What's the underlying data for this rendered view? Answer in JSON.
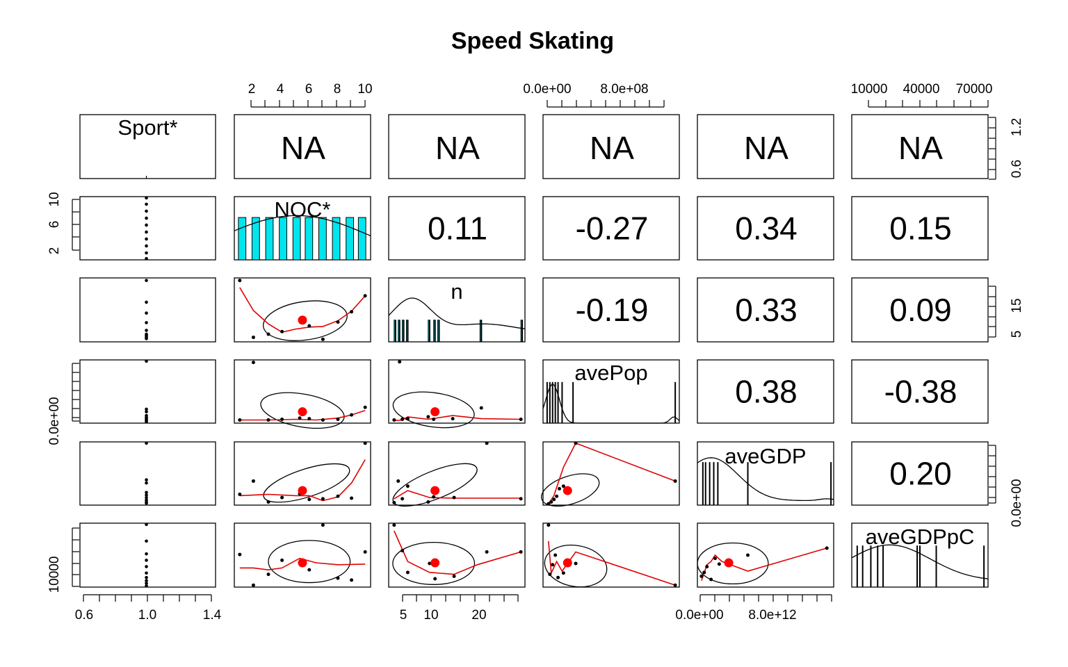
{
  "chart_data": {
    "type": "scatter",
    "title": "Speed Skating",
    "variables": [
      "Sport*",
      "NOC*",
      "n",
      "avePop",
      "aveGDP",
      "aveGDPpC"
    ],
    "diag_lower_ticks": {
      "Sport*": [
        "0.6",
        "1.0",
        "1.4"
      ],
      "n": [
        "5",
        "10",
        "20"
      ],
      "aveGDP": [
        "0.0e+00",
        "8.0e+12"
      ]
    },
    "top_ticks": {
      "NOC*": [
        "2",
        "4",
        "6",
        "8",
        "10"
      ],
      "avePop": [
        "0.0e+00",
        "8.0e+08"
      ],
      "aveGDPpC": [
        "10000",
        "40000",
        "70000"
      ]
    },
    "left_ticks": {
      "NOC*": [
        "2",
        "6",
        "10"
      ],
      "avePop": [
        "0.0e+00"
      ],
      "aveGDPpC": [
        "10000"
      ]
    },
    "right_ticks": {
      "Sport*": [
        "0.6",
        "1.2"
      ],
      "n": [
        "5",
        "15"
      ],
      "aveGDP": [
        "0.0e+00"
      ]
    },
    "na_label": "NA",
    "correlations": [
      {
        "row": "NOC*",
        "col": "n",
        "value": "0.11"
      },
      {
        "row": "NOC*",
        "col": "avePop",
        "value": "-0.27"
      },
      {
        "row": "NOC*",
        "col": "aveGDP",
        "value": "0.34"
      },
      {
        "row": "NOC*",
        "col": "aveGDPpC",
        "value": "0.15"
      },
      {
        "row": "n",
        "col": "avePop",
        "value": "-0.19"
      },
      {
        "row": "n",
        "col": "aveGDP",
        "value": "0.33"
      },
      {
        "row": "n",
        "col": "aveGDPpC",
        "value": "0.09"
      },
      {
        "row": "avePop",
        "col": "aveGDP",
        "value": "0.38"
      },
      {
        "row": "avePop",
        "col": "aveGDPpC",
        "value": "-0.38"
      },
      {
        "row": "aveGDP",
        "col": "aveGDPpC",
        "value": "0.20"
      }
    ]
  },
  "colors": {
    "histogram": "#00e5ee",
    "smoother": "#e00000",
    "center_point": "#ff0000"
  }
}
